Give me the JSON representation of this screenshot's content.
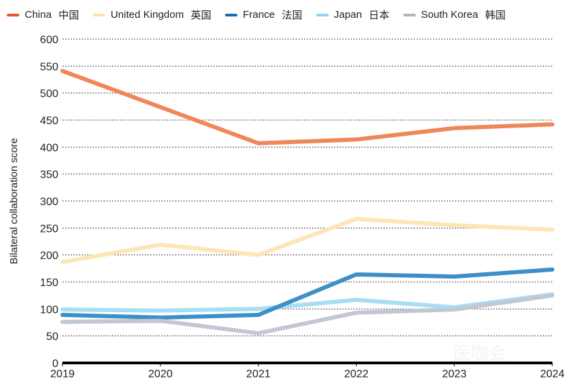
{
  "chart_data": {
    "type": "line",
    "title": "",
    "xlabel": "",
    "ylabel": "Bilateral collaboration score",
    "x": [
      "2019",
      "2020",
      "2021",
      "2022",
      "2023",
      "2024"
    ],
    "ylim": [
      0,
      600
    ],
    "yticks": [
      0,
      50,
      100,
      150,
      200,
      250,
      300,
      350,
      400,
      450,
      500,
      550,
      600
    ],
    "grid": "horizontal dotted",
    "legend_position": "top",
    "series": [
      {
        "name": "China",
        "name_cn": "中国",
        "color": "#F0875A",
        "legend_color": "#E8572A",
        "values": [
          541,
          474,
          407,
          414,
          435,
          442
        ]
      },
      {
        "name": "United Kingdom",
        "name_cn": "英国",
        "color": "#FDE6B6",
        "legend_color": "#FDE2A8",
        "values": [
          187,
          219,
          200,
          267,
          255,
          247
        ]
      },
      {
        "name": "France",
        "name_cn": "法国",
        "color": "#3E8FC8",
        "legend_color": "#1A6DB5",
        "values": [
          89,
          84,
          89,
          164,
          160,
          173
        ]
      },
      {
        "name": "Japan",
        "name_cn": "日本",
        "color": "#A7DEF5",
        "legend_color": "#8CD5F2",
        "values": [
          99,
          97,
          100,
          117,
          103,
          127
        ]
      },
      {
        "name": "South Korea",
        "name_cn": "韩国",
        "color": "#C2C8D2",
        "legend_color": "#AEB6C2",
        "values": [
          76,
          78,
          55,
          93,
          99,
          125
        ]
      }
    ]
  },
  "watermark": "医咖会"
}
